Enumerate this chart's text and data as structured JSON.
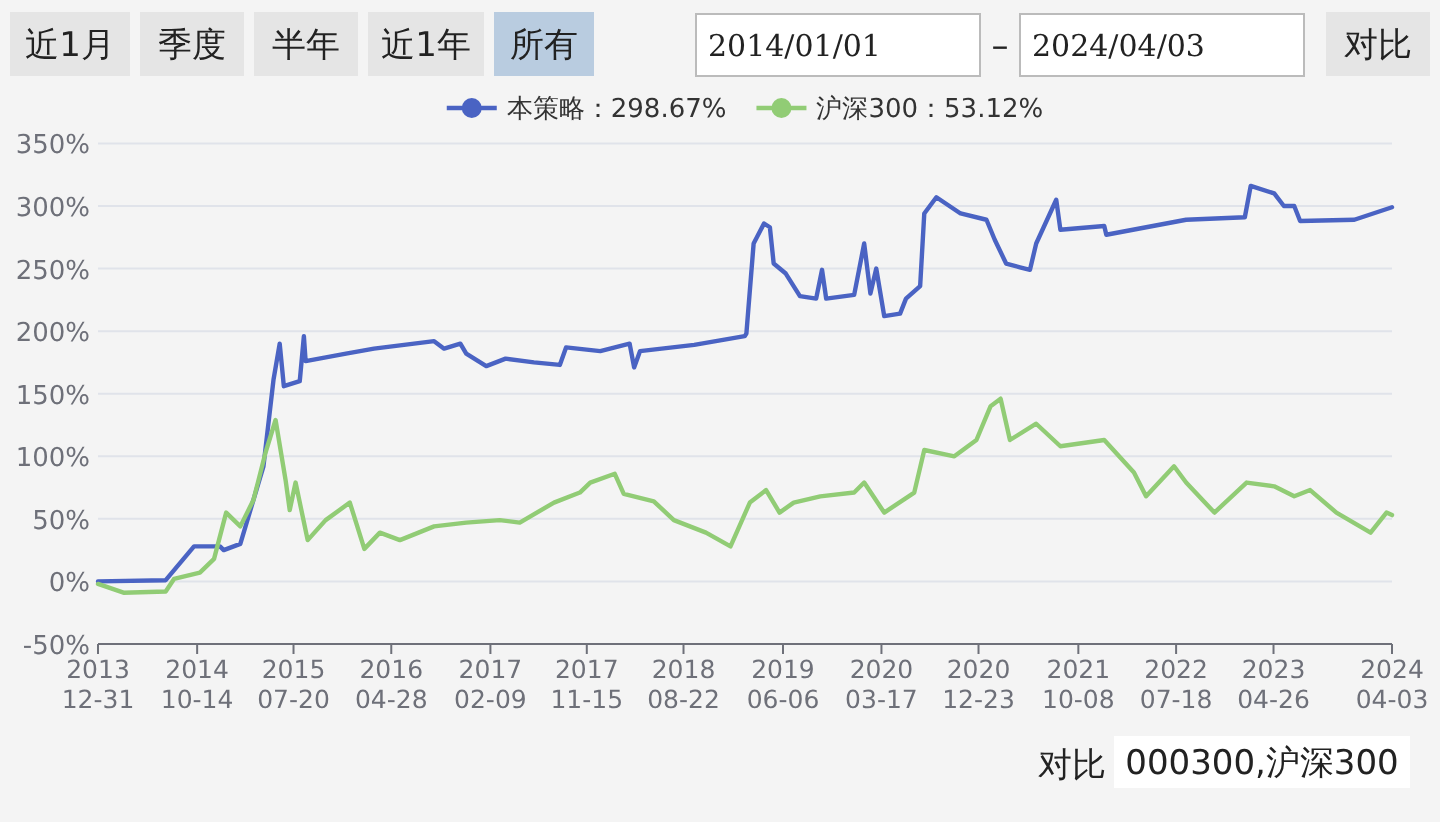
{
  "chart_data": {
    "type": "line",
    "annotations": [
      "近1月",
      "季度",
      "半年",
      "近1年",
      "所有",
      "2014/01/01",
      "–",
      "2024/04/03",
      "对比",
      "对比",
      "000300,沪深300"
    ],
    "xlim": [
      "2013-12-31",
      "2024-04-03"
    ],
    "xticks": [
      {
        "value": "2013-12-31",
        "label": "2013\n12-31"
      },
      {
        "value": "2014-10-14",
        "label": "2014\n10-14"
      },
      {
        "value": "2015-07-20",
        "label": "2015\n07-20"
      },
      {
        "value": "2016-04-28",
        "label": "2016\n04-28"
      },
      {
        "value": "2017-02-09",
        "label": "2017\n02-09"
      },
      {
        "value": "2017-11-15",
        "label": "2017\n11-15"
      },
      {
        "value": "2018-08-22",
        "label": "2018\n08-22"
      },
      {
        "value": "2019-06-06",
        "label": "2019\n06-06"
      },
      {
        "value": "2020-03-17",
        "label": "2020\n03-17"
      },
      {
        "value": "2020-12-23",
        "label": "2020\n12-23"
      },
      {
        "value": "2021-10-08",
        "label": "2021\n10-08"
      },
      {
        "value": "2022-07-18",
        "label": "2022\n07-18"
      },
      {
        "value": "2023-04-26",
        "label": "2023\n04-26"
      },
      {
        "value": "2024-04-03",
        "label": "2024\n04-03"
      }
    ],
    "ylim": [
      -50,
      350
    ],
    "yticks": [
      {
        "value": -50,
        "label": "-50%"
      },
      {
        "value": 0,
        "label": "0%"
      },
      {
        "value": 50,
        "label": "50%"
      },
      {
        "value": 100,
        "label": "100%"
      },
      {
        "value": 150,
        "label": "150%"
      },
      {
        "value": 200,
        "label": "200%"
      },
      {
        "value": 250,
        "label": "250%"
      },
      {
        "value": 300,
        "label": "300%"
      },
      {
        "value": 350,
        "label": "350%"
      }
    ],
    "grid": "y",
    "legend": "top",
    "marker": "none",
    "line_style": "solid",
    "series": [
      {
        "name": "本策略：298.67%",
        "color": "#4a63c3",
        "x": [
          "2013-12-31",
          "2014-07-15",
          "2014-10-05",
          "2014-12-19",
          "2014-12-30",
          "2015-02-16",
          "2015-04-24",
          "2015-05-23",
          "2015-06-10",
          "2015-06-22",
          "2015-08-07",
          "2015-08-19",
          "2015-08-24",
          "2015-12-19",
          "2016-03-09",
          "2016-08-30",
          "2016-09-28",
          "2016-11-14",
          "2016-12-01",
          "2017-01-28",
          "2017-03-25",
          "2017-06-15",
          "2017-08-29",
          "2017-09-16",
          "2017-12-24",
          "2018-03-19",
          "2018-04-01",
          "2018-04-18",
          "2018-09-22",
          "2019-02-15",
          "2019-02-20",
          "2019-03-13",
          "2019-04-12",
          "2019-04-29",
          "2019-05-10",
          "2019-06-14",
          "2019-07-25",
          "2019-09-10",
          "2019-09-27",
          "2019-10-09",
          "2019-12-29",
          "2020-01-27",
          "2020-02-14",
          "2020-03-02",
          "2020-03-25",
          "2020-05-10",
          "2020-05-27",
          "2020-07-07",
          "2020-07-19",
          "2020-08-23",
          "2020-11-01",
          "2021-01-15",
          "2021-02-08",
          "2021-03-13",
          "2021-04-22",
          "2021-05-21",
          "2021-06-08",
          "2021-08-05",
          "2021-08-17",
          "2021-12-22",
          "2021-12-28",
          "2022-08-16",
          "2023-02-02",
          "2023-02-19",
          "2023-04-28",
          "2023-05-26",
          "2023-06-25",
          "2023-07-12",
          "2023-12-16",
          "2024-04-03"
        ],
        "values": [
          0,
          1,
          28,
          28,
          25,
          30,
          92,
          161,
          190,
          156,
          160,
          196,
          176,
          182,
          186,
          192,
          186,
          190,
          182,
          172,
          178,
          175,
          173,
          187,
          184,
          190,
          171,
          184,
          189,
          196,
          198,
          270,
          286,
          283,
          254,
          246,
          228,
          226,
          249,
          226,
          229,
          270,
          230,
          250,
          212,
          214,
          226,
          236,
          294,
          307,
          294,
          289,
          273,
          254,
          251,
          249,
          270,
          305,
          281,
          284,
          277,
          289,
          291,
          316,
          310,
          300,
          300,
          288,
          289,
          299
        ]
      },
      {
        "name": "沪深300：53.12%",
        "color": "#91cc75",
        "x": [
          "2013-12-31",
          "2014-03-15",
          "2014-07-15",
          "2014-08-08",
          "2014-10-22",
          "2014-12-02",
          "2015-01-06",
          "2015-02-16",
          "2015-03-26",
          "2015-04-30",
          "2015-05-29",
          "2015-06-27",
          "2015-07-09",
          "2015-07-26",
          "2015-08-30",
          "2015-10-21",
          "2015-12-30",
          "2016-02-10",
          "2016-03-26",
          "2016-05-23",
          "2016-08-30",
          "2016-12-01",
          "2017-03-08",
          "2017-05-05",
          "2017-08-12",
          "2017-10-26",
          "2017-11-25",
          "2018-02-04",
          "2018-03-02",
          "2018-05-28",
          "2018-07-25",
          "2018-10-26",
          "2019-01-05",
          "2019-03-02",
          "2019-04-18",
          "2019-05-27",
          "2019-07-07",
          "2019-09-22",
          "2019-12-29",
          "2020-01-27",
          "2020-03-25",
          "2020-06-20",
          "2020-07-19",
          "2020-10-14",
          "2020-12-17",
          "2021-01-27",
          "2021-02-25",
          "2021-03-24",
          "2021-06-08",
          "2021-08-17",
          "2021-12-22",
          "2022-03-18",
          "2022-04-22",
          "2022-07-12",
          "2022-08-16",
          "2022-11-06",
          "2023-02-07",
          "2023-04-28",
          "2023-06-25",
          "2023-08-10",
          "2023-10-25",
          "2024-02-01",
          "2024-03-18",
          "2024-04-03"
        ],
        "values": [
          -2,
          -9,
          -8,
          2,
          7,
          18,
          55,
          44,
          65,
          103,
          129,
          81,
          57,
          79,
          33,
          49,
          63,
          26,
          39,
          33,
          44,
          47,
          49,
          47,
          63,
          71,
          79,
          86,
          70,
          64,
          49,
          39,
          28,
          63,
          73,
          55,
          63,
          68,
          71,
          79,
          55,
          71,
          105,
          100,
          113,
          140,
          146,
          113,
          126,
          108,
          113,
          87,
          68,
          92,
          79,
          55,
          79,
          76,
          68,
          73,
          55,
          39,
          55,
          53
        ]
      }
    ]
  }
}
